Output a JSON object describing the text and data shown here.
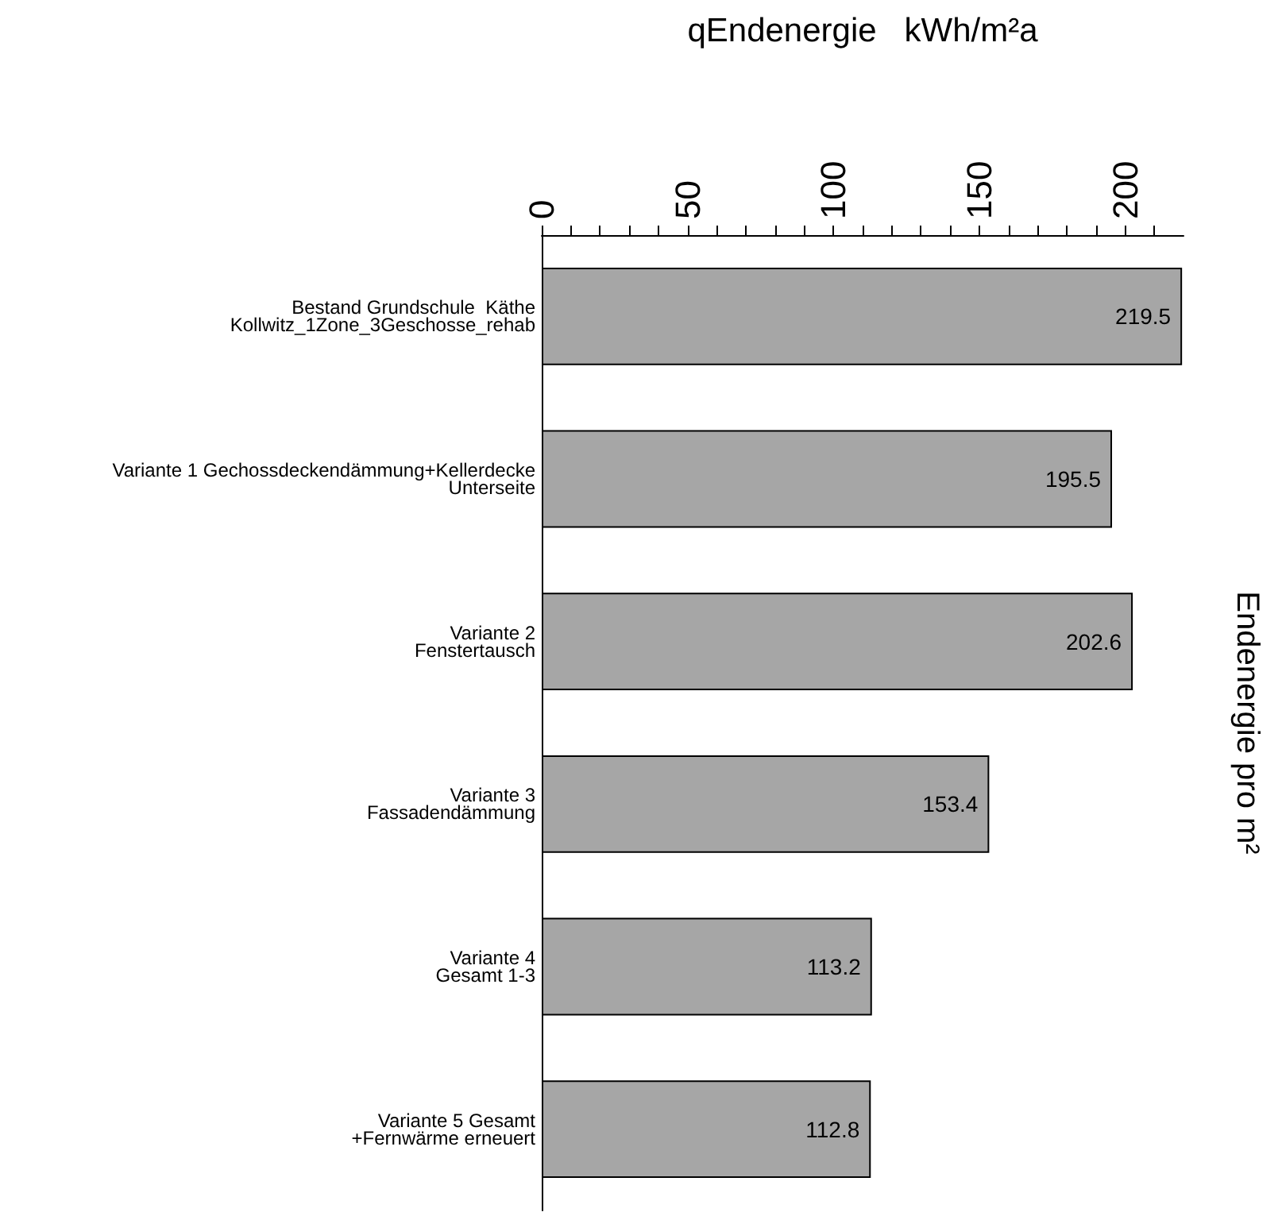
{
  "chart_data": {
    "type": "bar",
    "orientation": "horizontal",
    "title": "Endenergie pro m²",
    "xlabel": "qEndenergie   kWh/m²a",
    "categories": [
      "Bestand Grundschule  Käthe\nKollwitz_1Zone_3Geschosse_rehab",
      "Variante 1 Gechossdeckendämmung+Kellerdecke\nUnterseite",
      "Variante 2\nFenstertausch",
      "Variante 3\nFassadendämmung",
      "Variante 4\nGesamt 1-3",
      "Variante 5 Gesamt\n+Fernwärme erneuert"
    ],
    "values": [
      219.5,
      195.5,
      202.6,
      153.4,
      113.2,
      112.8
    ],
    "color": "#a6a6a6",
    "data_labels": true,
    "grid": false,
    "xlim": [
      0,
      220
    ],
    "xticks": [
      0,
      {
        "value": 10,
        "label": null
      },
      {
        "value": 20,
        "label": null
      },
      {
        "value": 30,
        "label": null
      },
      {
        "value": 40,
        "label": null
      },
      50,
      {
        "value": 60,
        "label": null
      },
      {
        "value": 70,
        "label": null
      },
      {
        "value": 80,
        "label": null
      },
      {
        "value": 90,
        "label": null
      },
      100,
      {
        "value": 110,
        "label": null
      },
      {
        "value": 120,
        "label": null
      },
      {
        "value": 130,
        "label": null
      },
      {
        "value": 140,
        "label": null
      },
      150,
      {
        "value": 160,
        "label": null
      },
      {
        "value": 170,
        "label": null
      },
      {
        "value": 180,
        "label": null
      },
      {
        "value": 190,
        "label": null
      },
      200,
      {
        "value": 210,
        "label": null
      }
    ]
  }
}
